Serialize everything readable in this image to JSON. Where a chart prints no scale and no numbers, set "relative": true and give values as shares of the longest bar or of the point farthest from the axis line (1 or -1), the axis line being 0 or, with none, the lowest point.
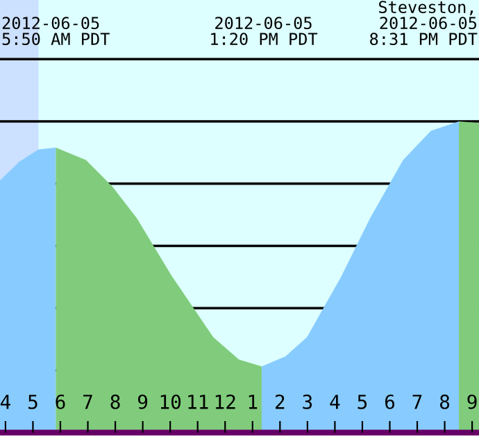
{
  "chart_data": {
    "type": "area",
    "relative": true,
    "xlim": [
      "2012-06-05T03:48",
      "2012-06-05T21:15"
    ],
    "xticks": [
      {
        "value": "2012-06-05T04:00",
        "label": "4"
      },
      {
        "value": "2012-06-05T05:00",
        "label": "5"
      },
      {
        "value": "2012-06-05T06:00",
        "label": "6"
      },
      {
        "value": "2012-06-05T07:00",
        "label": "7"
      },
      {
        "value": "2012-06-05T08:00",
        "label": "8"
      },
      {
        "value": "2012-06-05T09:00",
        "label": "9"
      },
      {
        "value": "2012-06-05T10:00",
        "label": "10"
      },
      {
        "value": "2012-06-05T11:00",
        "label": "11"
      },
      {
        "value": "2012-06-05T12:00",
        "label": "12"
      },
      {
        "value": "2012-06-05T13:00",
        "label": "1"
      },
      {
        "value": "2012-06-05T14:00",
        "label": "2"
      },
      {
        "value": "2012-06-05T15:00",
        "label": "3"
      },
      {
        "value": "2012-06-05T16:00",
        "label": "4"
      },
      {
        "value": "2012-06-05T17:00",
        "label": "5"
      },
      {
        "value": "2012-06-05T18:00",
        "label": "6"
      },
      {
        "value": "2012-06-05T19:00",
        "label": "7"
      },
      {
        "value": "2012-06-05T20:00",
        "label": "8"
      },
      {
        "value": "2012-06-05T21:00",
        "label": "9"
      }
    ],
    "series": [
      {
        "color": "#88ccff",
        "x": [
          "2012-06-05T03:48",
          "2012-06-05T04:30",
          "2012-06-05T05:12",
          "2012-06-05T05:50"
        ],
        "values": [
          0.81,
          0.87,
          0.91,
          0.916
        ]
      },
      {
        "color": "#80cc7c",
        "x": [
          "2012-06-05T05:50",
          "2012-06-05T06:56",
          "2012-06-05T07:54",
          "2012-06-05T08:47",
          "2012-06-05T10:04",
          "2012-06-05T11:34",
          "2012-06-05T12:30",
          "2012-06-05T13:20"
        ],
        "values": [
          0.916,
          0.876,
          0.79,
          0.689,
          0.502,
          0.307,
          0.235,
          0.213
        ]
      },
      {
        "color": "#88ccff",
        "x": [
          "2012-06-05T13:20",
          "2012-06-05T14:12",
          "2012-06-05T14:59",
          "2012-06-05T16:14",
          "2012-06-05T17:17",
          "2012-06-05T18:29",
          "2012-06-05T19:30",
          "2012-06-05T20:31"
        ],
        "values": [
          0.213,
          0.245,
          0.307,
          0.502,
          0.689,
          0.876,
          0.97,
          1
        ]
      },
      {
        "color": "#80cc7c",
        "x": [
          "2012-06-05T20:31",
          "2012-06-05T21:15"
        ],
        "values": [
          1,
          0.995
        ]
      }
    ],
    "bands": [
      {
        "axis": "x",
        "from": "2012-06-05T03:48",
        "to": "2012-06-05T05:12",
        "color": "#cce0ff"
      }
    ],
    "grid": "y",
    "annotations": [
      "2012-06-05\n5:50 AM PDT",
      "2012-06-05\n1:20 PM PDT",
      "2012-06-05\n8:31 PM PDT",
      "Steveston,"
    ]
  }
}
